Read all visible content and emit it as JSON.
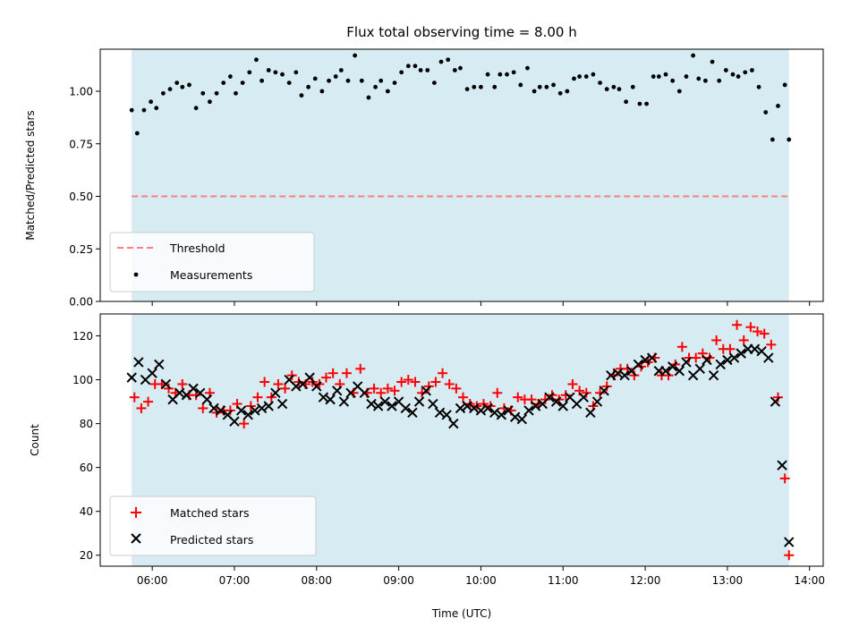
{
  "title": "Flux total observing time = 8.00 h",
  "colors": {
    "observing_window": "#add8e6",
    "threshold": "#ff7f7f",
    "measurements": "#000000",
    "matched": "#ff0000",
    "predicted": "#000000"
  },
  "chart_data": [
    {
      "type": "scatter",
      "panel": "top",
      "title": "Flux total observing time = 8.00 h",
      "xlabel": "",
      "ylabel": "Matched/Predicted stars",
      "xlim": [
        "05:22",
        "14:10"
      ],
      "ylim": [
        0,
        1.2
      ],
      "yticks": [
        "0.00",
        "0.25",
        "0.50",
        "0.75",
        "1.00"
      ],
      "observing_window": [
        "05:45",
        "13:45"
      ],
      "legend_position": "lower-left",
      "threshold": {
        "name": "Threshold",
        "value": 0.5,
        "style": "dashed"
      },
      "series": [
        {
          "name": "Measurements",
          "marker": "dot",
          "x": [
            "05:45",
            "05:49",
            "05:54",
            "05:59",
            "06:03",
            "06:08",
            "06:13",
            "06:18",
            "06:22",
            "06:27",
            "06:32",
            "06:37",
            "06:42",
            "06:47",
            "06:52",
            "06:57",
            "07:01",
            "07:06",
            "07:11",
            "07:16",
            "07:20",
            "07:25",
            "07:30",
            "07:35",
            "07:40",
            "07:45",
            "07:49",
            "07:54",
            "07:59",
            "08:04",
            "08:09",
            "08:14",
            "08:18",
            "08:23",
            "08:28",
            "08:33",
            "08:38",
            "08:43",
            "08:47",
            "08:52",
            "08:57",
            "09:02",
            "09:07",
            "09:12",
            "09:16",
            "09:21",
            "09:26",
            "09:31",
            "09:36",
            "09:41",
            "09:45",
            "09:50",
            "09:55",
            "10:00",
            "10:05",
            "10:10",
            "10:14",
            "10:19",
            "10:24",
            "10:29",
            "10:34",
            "10:39",
            "10:43",
            "10:48",
            "10:53",
            "10:58",
            "11:03",
            "11:08",
            "11:12",
            "11:17",
            "11:22",
            "11:27",
            "11:32",
            "11:37",
            "11:41",
            "11:46",
            "11:51",
            "11:56",
            "12:01",
            "12:06",
            "12:10",
            "12:15",
            "12:20",
            "12:25",
            "12:30",
            "12:35",
            "12:39",
            "12:44",
            "12:49",
            "12:54",
            "12:59",
            "13:04",
            "13:08",
            "13:13",
            "13:18",
            "13:23",
            "13:28",
            "13:33",
            "13:37",
            "13:42",
            "13:45"
          ],
          "y": [
            0.91,
            0.8,
            0.91,
            0.95,
            0.92,
            0.99,
            1.01,
            1.04,
            1.02,
            1.03,
            0.92,
            0.99,
            0.95,
            0.99,
            1.04,
            1.07,
            0.99,
            1.04,
            1.09,
            1.15,
            1.05,
            1.1,
            1.09,
            1.08,
            1.04,
            1.09,
            0.98,
            1.02,
            1.06,
            1.0,
            1.05,
            1.07,
            1.1,
            1.05,
            1.17,
            1.05,
            0.97,
            1.02,
            1.05,
            1.0,
            1.04,
            1.09,
            1.12,
            1.12,
            1.1,
            1.1,
            1.04,
            1.14,
            1.15,
            1.1,
            1.11,
            1.01,
            1.02,
            1.02,
            1.08,
            1.02,
            1.08,
            1.08,
            1.09,
            1.03,
            1.11,
            1.0,
            1.02,
            1.02,
            1.03,
            0.99,
            1.0,
            1.06,
            1.07,
            1.07,
            1.08,
            1.04,
            1.01,
            1.02,
            1.01,
            0.95,
            1.02,
            0.94,
            0.94,
            1.07,
            1.07,
            1.08,
            1.05,
            1.0,
            1.07,
            1.17,
            1.06,
            1.05,
            1.14,
            1.05,
            1.1,
            1.08,
            1.07,
            1.09,
            1.1,
            1.02,
            0.9,
            0.77,
            0.93,
            1.03,
            0.77
          ]
        }
      ]
    },
    {
      "type": "scatter",
      "panel": "bottom",
      "xlabel": "Time (UTC)",
      "ylabel": "Count",
      "xlim": [
        "05:22",
        "14:10"
      ],
      "xticks": [
        "06:00",
        "07:00",
        "08:00",
        "09:00",
        "10:00",
        "11:00",
        "12:00",
        "13:00",
        "14:00"
      ],
      "ylim": [
        15,
        130
      ],
      "yticks": [
        20,
        40,
        60,
        80,
        100,
        120
      ],
      "observing_window": [
        "05:45",
        "13:45"
      ],
      "legend_position": "lower-left",
      "series": [
        {
          "name": "Matched stars",
          "marker": "plus",
          "x": [
            "05:47",
            "05:52",
            "05:57",
            "06:02",
            "06:07",
            "06:12",
            "06:17",
            "06:22",
            "06:27",
            "06:32",
            "06:37",
            "06:42",
            "06:47",
            "06:52",
            "06:57",
            "07:02",
            "07:07",
            "07:12",
            "07:17",
            "07:22",
            "07:27",
            "07:32",
            "07:37",
            "07:42",
            "07:47",
            "07:52",
            "07:57",
            "08:02",
            "08:07",
            "08:12",
            "08:17",
            "08:22",
            "08:27",
            "08:32",
            "08:37",
            "08:42",
            "08:47",
            "08:52",
            "08:57",
            "09:02",
            "09:07",
            "09:12",
            "09:17",
            "09:22",
            "09:27",
            "09:32",
            "09:37",
            "09:42",
            "09:47",
            "09:52",
            "09:57",
            "10:02",
            "10:07",
            "10:12",
            "10:17",
            "10:22",
            "10:27",
            "10:32",
            "10:37",
            "10:42",
            "10:47",
            "10:52",
            "10:57",
            "11:02",
            "11:07",
            "11:12",
            "11:17",
            "11:22",
            "11:27",
            "11:32",
            "11:37",
            "11:42",
            "11:47",
            "11:52",
            "11:57",
            "12:02",
            "12:07",
            "12:12",
            "12:17",
            "12:22",
            "12:27",
            "12:32",
            "12:37",
            "12:42",
            "12:47",
            "12:52",
            "12:57",
            "13:02",
            "13:07",
            "13:12",
            "13:17",
            "13:22",
            "13:27",
            "13:32",
            "13:37",
            "13:42",
            "13:45"
          ],
          "y": [
            92,
            87,
            90,
            98,
            98,
            96,
            94,
            98,
            93,
            93,
            87,
            94,
            85,
            86,
            86,
            89,
            80,
            88,
            92,
            99,
            92,
            98,
            96,
            102,
            99,
            98,
            99,
            98,
            101,
            103,
            98,
            103,
            94,
            105,
            94,
            96,
            94,
            96,
            95,
            99,
            100,
            99,
            94,
            97,
            99,
            103,
            98,
            96,
            92,
            89,
            88,
            89,
            88,
            94,
            87,
            86,
            92,
            91,
            91,
            89,
            91,
            93,
            91,
            93,
            98,
            95,
            94,
            88,
            94,
            97,
            102,
            105,
            105,
            102,
            106,
            108,
            110,
            102,
            102,
            107,
            115,
            110,
            110,
            112,
            110,
            118,
            114,
            114,
            125,
            118,
            124,
            122,
            121,
            116,
            92,
            55,
            20
          ]
        },
        {
          "name": "Predicted stars",
          "marker": "x",
          "x": [
            "05:45",
            "05:50",
            "05:55",
            "06:00",
            "06:05",
            "06:10",
            "06:15",
            "06:20",
            "06:25",
            "06:30",
            "06:35",
            "06:40",
            "06:45",
            "06:50",
            "06:55",
            "07:00",
            "07:05",
            "07:10",
            "07:15",
            "07:20",
            "07:25",
            "07:30",
            "07:35",
            "07:40",
            "07:45",
            "07:50",
            "07:55",
            "08:00",
            "08:05",
            "08:10",
            "08:15",
            "08:20",
            "08:25",
            "08:30",
            "08:35",
            "08:40",
            "08:45",
            "08:50",
            "08:55",
            "09:00",
            "09:05",
            "09:10",
            "09:15",
            "09:20",
            "09:25",
            "09:30",
            "09:35",
            "09:40",
            "09:45",
            "09:50",
            "09:55",
            "10:00",
            "10:05",
            "10:10",
            "10:15",
            "10:20",
            "10:25",
            "10:30",
            "10:35",
            "10:40",
            "10:45",
            "10:50",
            "10:55",
            "11:00",
            "11:05",
            "11:10",
            "11:15",
            "11:20",
            "11:25",
            "11:30",
            "11:35",
            "11:40",
            "11:45",
            "11:50",
            "11:55",
            "12:00",
            "12:05",
            "12:10",
            "12:15",
            "12:20",
            "12:25",
            "12:30",
            "12:35",
            "12:40",
            "12:45",
            "12:50",
            "12:55",
            "13:00",
            "13:05",
            "13:10",
            "13:15",
            "13:20",
            "13:25",
            "13:30",
            "13:35",
            "13:40",
            "13:45"
          ],
          "y": [
            101,
            108,
            100,
            103,
            107,
            98,
            91,
            94,
            93,
            96,
            94,
            91,
            87,
            86,
            84,
            81,
            86,
            84,
            86,
            87,
            88,
            94,
            89,
            100,
            97,
            98,
            101,
            97,
            92,
            91,
            95,
            90,
            94,
            97,
            94,
            89,
            88,
            90,
            88,
            90,
            87,
            85,
            90,
            95,
            89,
            85,
            84,
            80,
            87,
            88,
            87,
            86,
            87,
            85,
            84,
            86,
            83,
            82,
            86,
            88,
            89,
            92,
            90,
            88,
            92,
            89,
            92,
            85,
            90,
            95,
            102,
            103,
            102,
            104,
            107,
            109,
            110,
            104,
            104,
            106,
            104,
            108,
            102,
            105,
            109,
            102,
            107,
            109,
            110,
            112,
            114,
            114,
            113,
            110,
            90,
            61,
            26
          ]
        }
      ]
    }
  ]
}
